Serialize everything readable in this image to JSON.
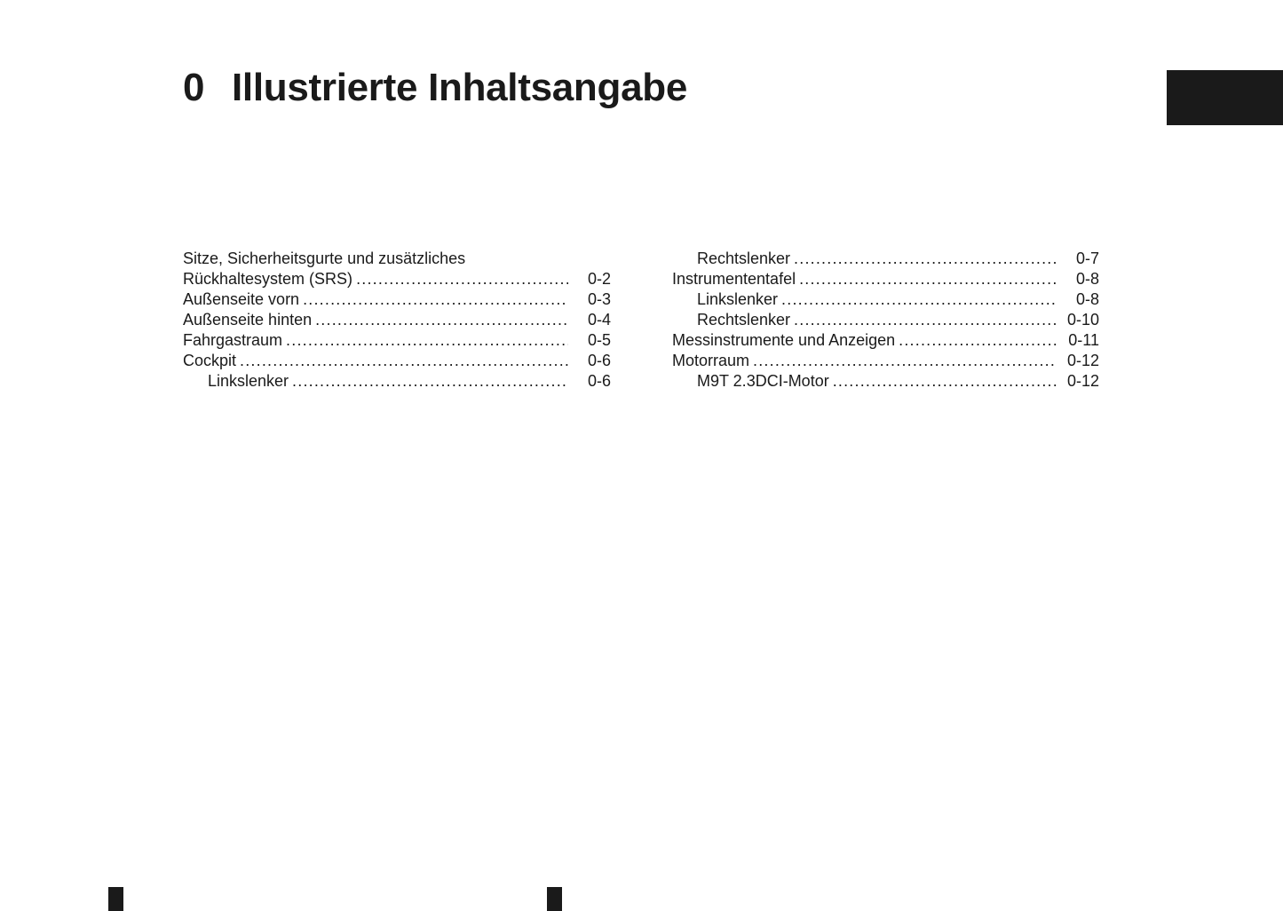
{
  "header": {
    "chapter_number": "0",
    "chapter_title": "Illustrierte Inhaltsangabe"
  },
  "toc_left": [
    {
      "label": "Sitze, Sicherheitsgurte und zusätzliches",
      "page": "",
      "indent": false
    },
    {
      "label": "Rückhaltesystem (SRS)",
      "page": "0-2",
      "indent": false
    },
    {
      "label": "Außenseite vorn",
      "page": "0-3",
      "indent": false
    },
    {
      "label": "Außenseite hinten",
      "page": "0-4",
      "indent": false
    },
    {
      "label": "Fahrgastraum",
      "page": "0-5",
      "indent": false
    },
    {
      "label": "Cockpit",
      "page": "0-6",
      "indent": false
    },
    {
      "label": "Linkslenker",
      "page": "0-6",
      "indent": true
    }
  ],
  "toc_right": [
    {
      "label": "Rechtslenker",
      "page": "0-7",
      "indent": true
    },
    {
      "label": "Instrumententafel",
      "page": "0-8",
      "indent": false
    },
    {
      "label": "Linkslenker",
      "page": "0-8",
      "indent": true
    },
    {
      "label": "Rechtslenker",
      "page": "0-10",
      "indent": true
    },
    {
      "label": "Messinstrumente und Anzeigen",
      "page": "0-11",
      "indent": false
    },
    {
      "label": "Motorraum",
      "page": "0-12",
      "indent": false
    },
    {
      "label": "M9T 2.3DCI-Motor",
      "page": "0-12",
      "indent": true
    }
  ]
}
